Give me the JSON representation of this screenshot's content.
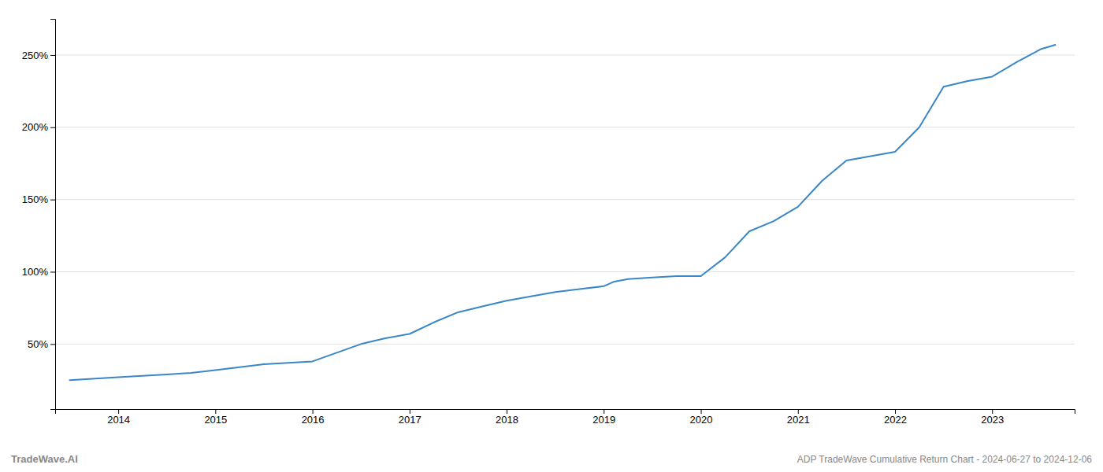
{
  "chart_data": {
    "type": "line",
    "title": "ADP TradeWave Cumulative Return Chart - 2024-06-27 to 2024-12-06",
    "annotations": [
      "TradeWave.AI"
    ],
    "color": "#3a87c8",
    "x": [
      2013.5,
      2014.0,
      2014.25,
      2014.5,
      2014.75,
      2015.0,
      2015.25,
      2015.5,
      2015.75,
      2016.0,
      2016.25,
      2016.5,
      2016.75,
      2017.0,
      2017.25,
      2017.5,
      2017.75,
      2018.0,
      2018.25,
      2018.5,
      2018.75,
      2019.0,
      2019.1,
      2019.25,
      2019.5,
      2019.75,
      2020.0,
      2020.25,
      2020.5,
      2020.75,
      2021.0,
      2021.25,
      2021.5,
      2021.75,
      2022.0,
      2022.25,
      2022.5,
      2022.75,
      2023.0,
      2023.25,
      2023.5,
      2023.65
    ],
    "values": [
      25,
      27,
      28,
      29,
      30,
      32,
      34,
      36,
      37,
      38,
      44,
      50,
      54,
      57,
      65,
      72,
      76,
      80,
      83,
      86,
      88,
      90,
      93,
      95,
      96,
      97,
      97,
      110,
      128,
      135,
      145,
      163,
      177,
      180,
      183,
      200,
      228,
      232,
      235,
      245,
      254,
      257
    ],
    "xlim": [
      2013.35,
      2023.85
    ],
    "xticks": [
      2014,
      2015,
      2016,
      2017,
      2018,
      2019,
      2020,
      2021,
      2022,
      2023
    ],
    "ylim": [
      5,
      275
    ],
    "yticks": [
      {
        "value": 50,
        "label": "50%"
      },
      {
        "value": 100,
        "label": "100%"
      },
      {
        "value": 150,
        "label": "150%"
      },
      {
        "value": 200,
        "label": "200%"
      },
      {
        "value": 250,
        "label": "250%"
      }
    ],
    "grid": "y"
  }
}
